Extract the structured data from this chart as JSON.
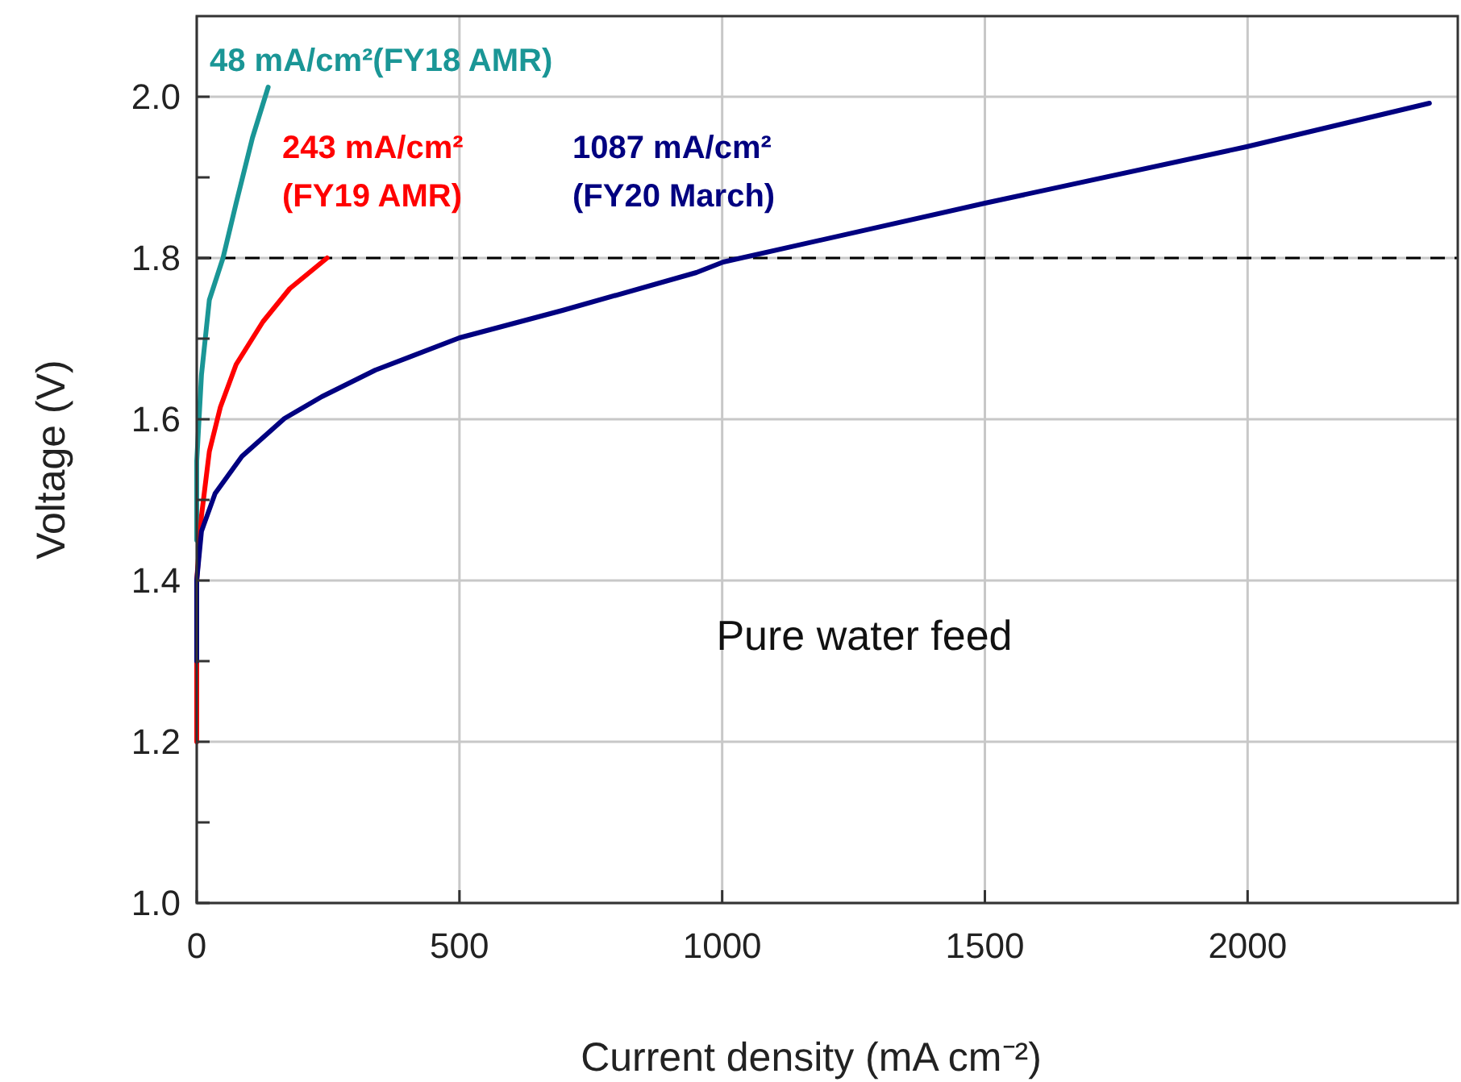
{
  "chart_data": {
    "type": "line",
    "xlabel": "Current density (mA cm⁻²)",
    "ylabel": "Voltage (V)",
    "xlim": [
      0,
      2400
    ],
    "xticks": [
      0,
      500,
      1000,
      1500,
      2000
    ],
    "ylim": [
      1.0,
      2.1
    ],
    "yticks": [
      {
        "value": 1.0,
        "label": "1.0"
      },
      {
        "value": 1.1,
        "label": null
      },
      {
        "value": 1.2,
        "label": "1.2"
      },
      {
        "value": 1.3,
        "label": null
      },
      {
        "value": 1.4,
        "label": "1.4"
      },
      {
        "value": 1.5,
        "label": null
      },
      {
        "value": 1.6,
        "label": "1.6"
      },
      {
        "value": 1.7,
        "label": null
      },
      {
        "value": 1.8,
        "label": "1.8"
      },
      {
        "value": 1.9,
        "label": null
      },
      {
        "value": 2.0,
        "label": "2.0"
      }
    ],
    "grid": true,
    "marker": "none",
    "line_style": "solid",
    "ref_lines": [
      {
        "axis": "y",
        "value": 1.8,
        "color": "#000000",
        "line_style": "dashed"
      }
    ],
    "annotations": [
      "Pure water feed"
    ],
    "series": [
      {
        "name": "48 mA/cm²(FY18 AMR)",
        "color": "#1a9696",
        "x": [
          0,
          0,
          9,
          24,
          50,
          75,
          106,
          136
        ],
        "values": [
          1.45,
          1.548,
          1.655,
          1.748,
          1.8,
          1.868,
          1.949,
          2.012
        ]
      },
      {
        "name": "243 mA/cm²\n(FY19 AMR)",
        "color": "#ff0000",
        "x": [
          0,
          0,
          9,
          24,
          45,
          75,
          126,
          177,
          248
        ],
        "values": [
          1.2,
          1.4,
          1.48,
          1.56,
          1.615,
          1.668,
          1.721,
          1.762,
          1.8
        ]
      },
      {
        "name": "1087 mA/cm²\n(FY20 March)",
        "color": "#000080",
        "x": [
          0,
          0,
          9,
          35,
          86,
          167,
          238,
          340,
          500,
          696,
          951,
          1002,
          1500,
          1998,
          2346
        ],
        "values": [
          1.3,
          1.4,
          1.461,
          1.508,
          1.554,
          1.601,
          1.628,
          1.661,
          1.701,
          1.735,
          1.782,
          1.795,
          1.868,
          1.938,
          1.992
        ]
      }
    ]
  }
}
